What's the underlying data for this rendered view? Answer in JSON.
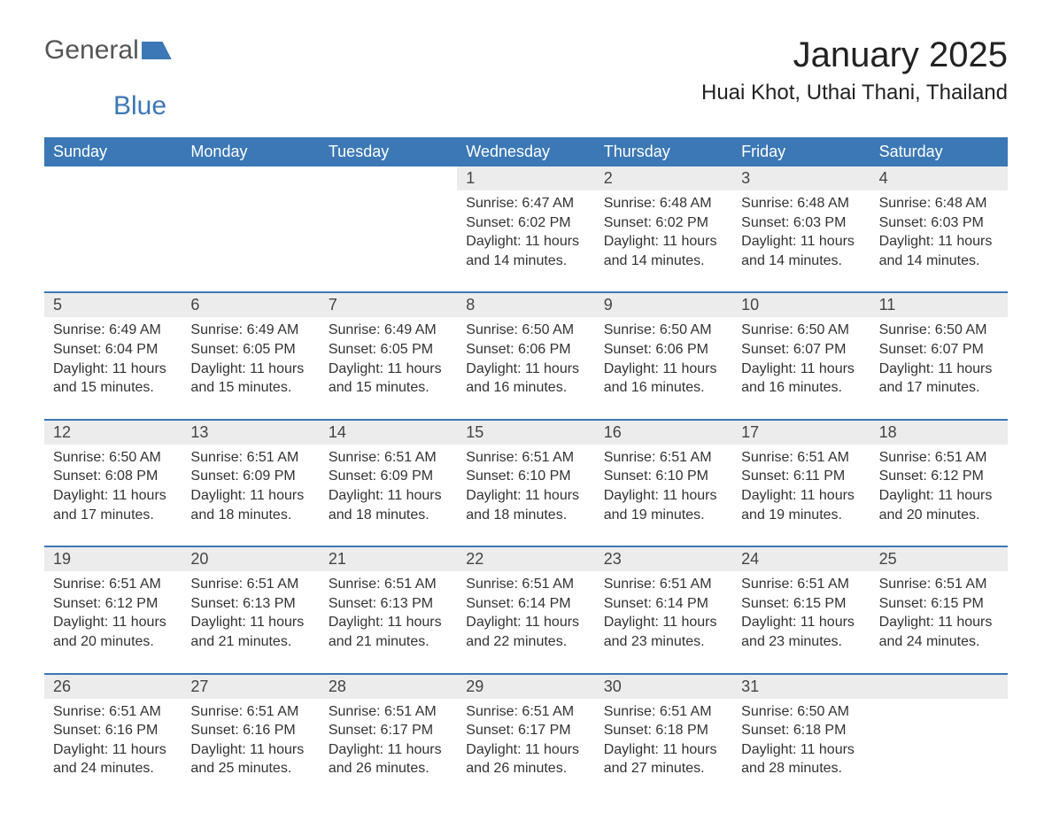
{
  "logo": {
    "text1": "General",
    "text2": "Blue"
  },
  "title": "January 2025",
  "location": "Huai Khot, Uthai Thani, Thailand",
  "colors": {
    "header_bg": "#3b78b5",
    "header_text": "#ffffff",
    "daynum_bg": "#ececec",
    "text": "#333333",
    "page_bg": "#ffffff",
    "week_border": "#3b78b5"
  },
  "typography": {
    "title_fontsize": 40,
    "location_fontsize": 24,
    "header_fontsize": 18,
    "cell_fontsize": 16,
    "font_family": "Arial"
  },
  "layout": {
    "columns": 7,
    "rows": 5
  },
  "day_labels": [
    "Sunday",
    "Monday",
    "Tuesday",
    "Wednesday",
    "Thursday",
    "Friday",
    "Saturday"
  ],
  "labels": {
    "sunrise": "Sunrise: ",
    "sunset": "Sunset: ",
    "daylight": "Daylight: "
  },
  "weeks": [
    [
      null,
      null,
      null,
      {
        "n": "1",
        "sunrise": "6:47 AM",
        "sunset": "6:02 PM",
        "daylight": "11 hours and 14 minutes."
      },
      {
        "n": "2",
        "sunrise": "6:48 AM",
        "sunset": "6:02 PM",
        "daylight": "11 hours and 14 minutes."
      },
      {
        "n": "3",
        "sunrise": "6:48 AM",
        "sunset": "6:03 PM",
        "daylight": "11 hours and 14 minutes."
      },
      {
        "n": "4",
        "sunrise": "6:48 AM",
        "sunset": "6:03 PM",
        "daylight": "11 hours and 14 minutes."
      }
    ],
    [
      {
        "n": "5",
        "sunrise": "6:49 AM",
        "sunset": "6:04 PM",
        "daylight": "11 hours and 15 minutes."
      },
      {
        "n": "6",
        "sunrise": "6:49 AM",
        "sunset": "6:05 PM",
        "daylight": "11 hours and 15 minutes."
      },
      {
        "n": "7",
        "sunrise": "6:49 AM",
        "sunset": "6:05 PM",
        "daylight": "11 hours and 15 minutes."
      },
      {
        "n": "8",
        "sunrise": "6:50 AM",
        "sunset": "6:06 PM",
        "daylight": "11 hours and 16 minutes."
      },
      {
        "n": "9",
        "sunrise": "6:50 AM",
        "sunset": "6:06 PM",
        "daylight": "11 hours and 16 minutes."
      },
      {
        "n": "10",
        "sunrise": "6:50 AM",
        "sunset": "6:07 PM",
        "daylight": "11 hours and 16 minutes."
      },
      {
        "n": "11",
        "sunrise": "6:50 AM",
        "sunset": "6:07 PM",
        "daylight": "11 hours and 17 minutes."
      }
    ],
    [
      {
        "n": "12",
        "sunrise": "6:50 AM",
        "sunset": "6:08 PM",
        "daylight": "11 hours and 17 minutes."
      },
      {
        "n": "13",
        "sunrise": "6:51 AM",
        "sunset": "6:09 PM",
        "daylight": "11 hours and 18 minutes."
      },
      {
        "n": "14",
        "sunrise": "6:51 AM",
        "sunset": "6:09 PM",
        "daylight": "11 hours and 18 minutes."
      },
      {
        "n": "15",
        "sunrise": "6:51 AM",
        "sunset": "6:10 PM",
        "daylight": "11 hours and 18 minutes."
      },
      {
        "n": "16",
        "sunrise": "6:51 AM",
        "sunset": "6:10 PM",
        "daylight": "11 hours and 19 minutes."
      },
      {
        "n": "17",
        "sunrise": "6:51 AM",
        "sunset": "6:11 PM",
        "daylight": "11 hours and 19 minutes."
      },
      {
        "n": "18",
        "sunrise": "6:51 AM",
        "sunset": "6:12 PM",
        "daylight": "11 hours and 20 minutes."
      }
    ],
    [
      {
        "n": "19",
        "sunrise": "6:51 AM",
        "sunset": "6:12 PM",
        "daylight": "11 hours and 20 minutes."
      },
      {
        "n": "20",
        "sunrise": "6:51 AM",
        "sunset": "6:13 PM",
        "daylight": "11 hours and 21 minutes."
      },
      {
        "n": "21",
        "sunrise": "6:51 AM",
        "sunset": "6:13 PM",
        "daylight": "11 hours and 21 minutes."
      },
      {
        "n": "22",
        "sunrise": "6:51 AM",
        "sunset": "6:14 PM",
        "daylight": "11 hours and 22 minutes."
      },
      {
        "n": "23",
        "sunrise": "6:51 AM",
        "sunset": "6:14 PM",
        "daylight": "11 hours and 23 minutes."
      },
      {
        "n": "24",
        "sunrise": "6:51 AM",
        "sunset": "6:15 PM",
        "daylight": "11 hours and 23 minutes."
      },
      {
        "n": "25",
        "sunrise": "6:51 AM",
        "sunset": "6:15 PM",
        "daylight": "11 hours and 24 minutes."
      }
    ],
    [
      {
        "n": "26",
        "sunrise": "6:51 AM",
        "sunset": "6:16 PM",
        "daylight": "11 hours and 24 minutes."
      },
      {
        "n": "27",
        "sunrise": "6:51 AM",
        "sunset": "6:16 PM",
        "daylight": "11 hours and 25 minutes."
      },
      {
        "n": "28",
        "sunrise": "6:51 AM",
        "sunset": "6:17 PM",
        "daylight": "11 hours and 26 minutes."
      },
      {
        "n": "29",
        "sunrise": "6:51 AM",
        "sunset": "6:17 PM",
        "daylight": "11 hours and 26 minutes."
      },
      {
        "n": "30",
        "sunrise": "6:51 AM",
        "sunset": "6:18 PM",
        "daylight": "11 hours and 27 minutes."
      },
      {
        "n": "31",
        "sunrise": "6:50 AM",
        "sunset": "6:18 PM",
        "daylight": "11 hours and 28 minutes."
      },
      null
    ]
  ]
}
